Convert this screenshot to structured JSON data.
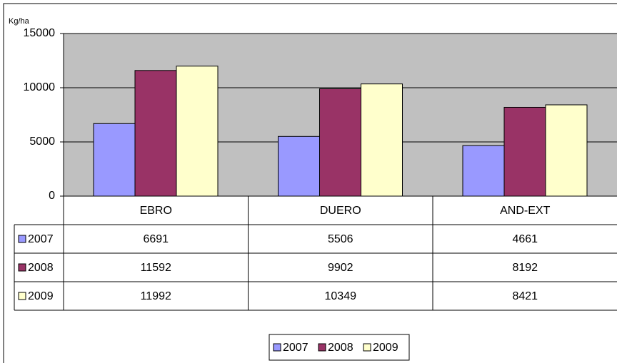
{
  "chart_data": {
    "type": "bar",
    "ylabel": "Kg/ha",
    "categories": [
      "EBRO",
      "DUERO",
      "AND-EXT"
    ],
    "series": [
      {
        "name": "2007",
        "color": "#9999ff",
        "values": [
          6691,
          5506,
          4661
        ]
      },
      {
        "name": "2008",
        "color": "#993366",
        "values": [
          11592,
          9902,
          8192
        ]
      },
      {
        "name": "2009",
        "color": "#ffffcc",
        "values": [
          11992,
          10349,
          8421
        ]
      }
    ],
    "ylim": [
      0,
      15000
    ],
    "yticks": [
      0,
      5000,
      10000,
      15000
    ],
    "grid": true,
    "legend": "bottom"
  }
}
